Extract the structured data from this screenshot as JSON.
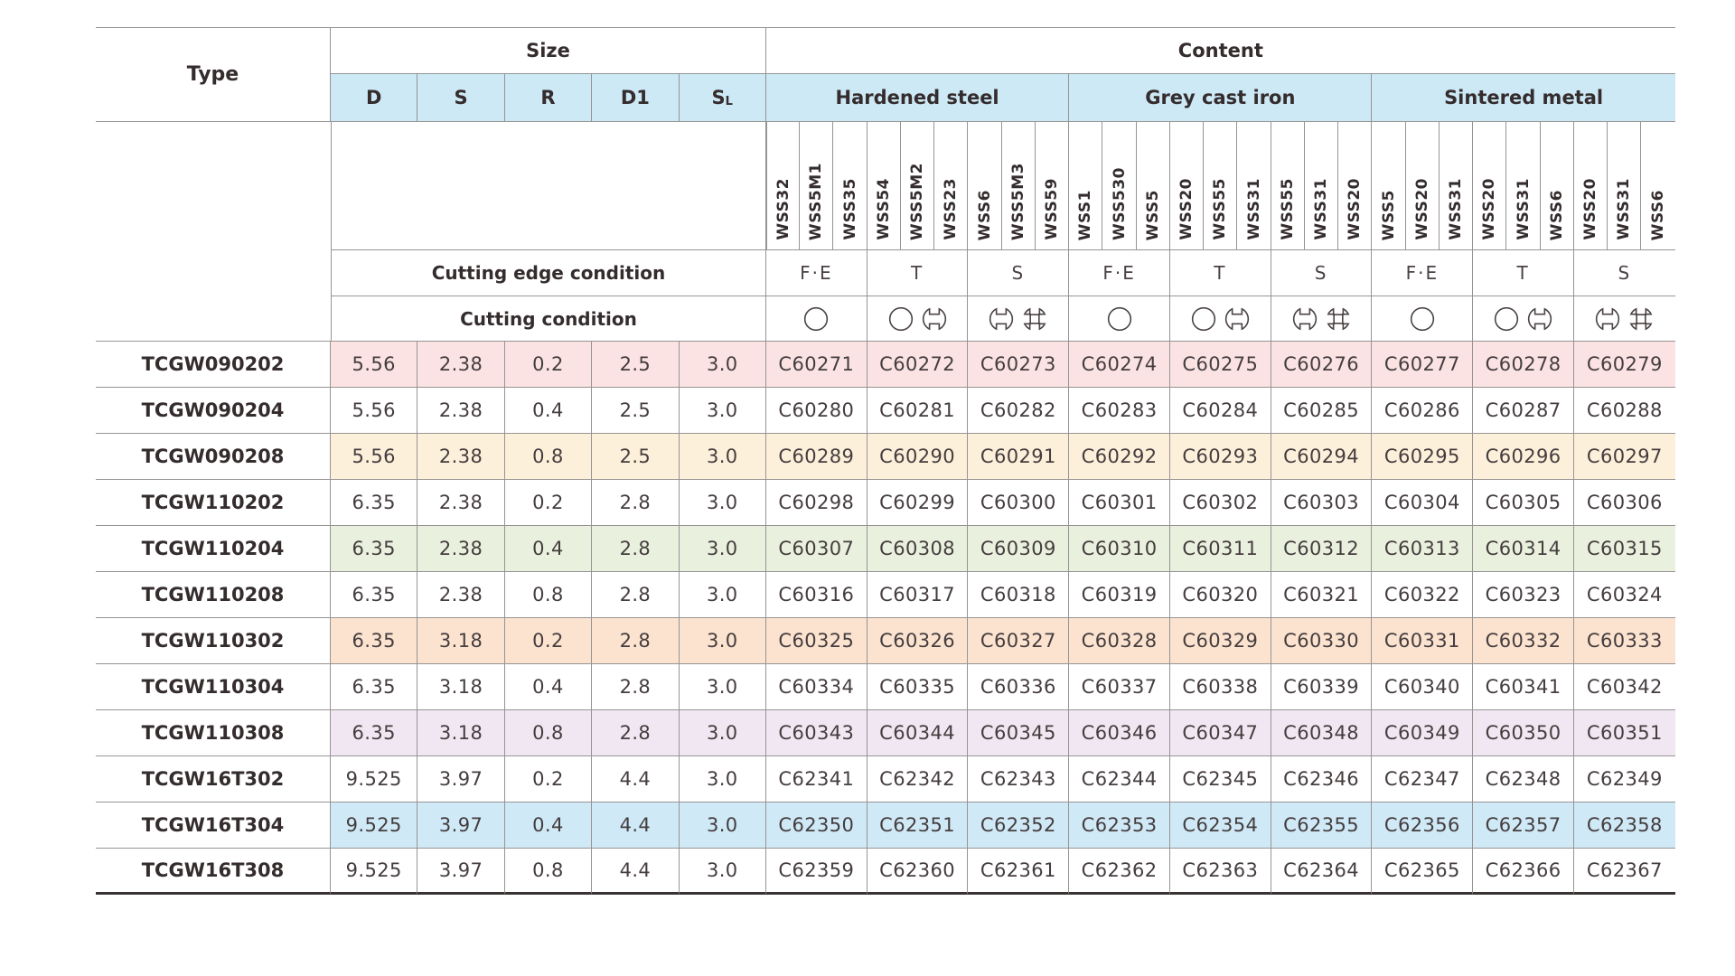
{
  "table": {
    "headers": {
      "type": "Type",
      "size": "Size",
      "content": "Content",
      "cutting_edge_condition": "Cutting edge condition",
      "cutting_condition": "Cutting condition"
    },
    "size_columns": [
      {
        "label": "D"
      },
      {
        "label": "S"
      },
      {
        "label": "R"
      },
      {
        "label": "D1"
      },
      {
        "label": "S",
        "sub": "L"
      }
    ],
    "material_groups": [
      {
        "label": "Hardened steel",
        "grades": [
          "WSS32",
          "WSS5M1",
          "WSS35",
          "WSS54",
          "WSS5M2",
          "WSS23",
          "WSS6",
          "WSS5M3",
          "WSS59"
        ]
      },
      {
        "label": "Grey cast iron",
        "grades": [
          "WSS1",
          "WSS530",
          "WSS5",
          "WSS20",
          "WSS55",
          "WSS31",
          "WSS55",
          "WSS31",
          "WSS20"
        ]
      },
      {
        "label": "Sintered metal",
        "grades": [
          "WSS5",
          "WSS20",
          "WSS31",
          "WSS20",
          "WSS31",
          "WSS6",
          "WSS20",
          "WSS31",
          "WSS6"
        ]
      }
    ],
    "edge_conditions": [
      "F·E",
      "T",
      "S"
    ],
    "cutting_condition_symbols": [
      [
        "continuous"
      ],
      [
        "continuous",
        "lightly-interrupted"
      ],
      [
        "lightly-interrupted",
        "heavily-interrupted"
      ]
    ],
    "colors": {
      "header_blue": "#cde9f6",
      "border_gray": "#979393",
      "bottom_rule": "#3a3233",
      "symbol_stroke": "#4c4445"
    },
    "rows": [
      {
        "type": "TCGW090202",
        "tint": "#fbe3e3",
        "size": [
          "5.56",
          "2.38",
          "0.2",
          "2.5",
          "3.0"
        ],
        "codes": [
          "C60271",
          "C60272",
          "C60273",
          "C60274",
          "C60275",
          "C60276",
          "C60277",
          "C60278",
          "C60279"
        ]
      },
      {
        "type": "TCGW090204",
        "tint": null,
        "size": [
          "5.56",
          "2.38",
          "0.4",
          "2.5",
          "3.0"
        ],
        "codes": [
          "C60280",
          "C60281",
          "C60282",
          "C60283",
          "C60284",
          "C60285",
          "C60286",
          "C60287",
          "C60288"
        ]
      },
      {
        "type": "TCGW090208",
        "tint": "#fdf0db",
        "size": [
          "5.56",
          "2.38",
          "0.8",
          "2.5",
          "3.0"
        ],
        "codes": [
          "C60289",
          "C60290",
          "C60291",
          "C60292",
          "C60293",
          "C60294",
          "C60295",
          "C60296",
          "C60297"
        ]
      },
      {
        "type": "TCGW110202",
        "tint": null,
        "size": [
          "6.35",
          "2.38",
          "0.2",
          "2.8",
          "3.0"
        ],
        "codes": [
          "C60298",
          "C60299",
          "C60300",
          "C60301",
          "C60302",
          "C60303",
          "C60304",
          "C60305",
          "C60306"
        ]
      },
      {
        "type": "TCGW110204",
        "tint": "#e9f1de",
        "size": [
          "6.35",
          "2.38",
          "0.4",
          "2.8",
          "3.0"
        ],
        "codes": [
          "C60307",
          "C60308",
          "C60309",
          "C60310",
          "C60311",
          "C60312",
          "C60313",
          "C60314",
          "C60315"
        ]
      },
      {
        "type": "TCGW110208",
        "tint": null,
        "size": [
          "6.35",
          "2.38",
          "0.8",
          "2.8",
          "3.0"
        ],
        "codes": [
          "C60316",
          "C60317",
          "C60318",
          "C60319",
          "C60320",
          "C60321",
          "C60322",
          "C60323",
          "C60324"
        ]
      },
      {
        "type": "TCGW110302",
        "tint": "#fbe3d0",
        "size": [
          "6.35",
          "3.18",
          "0.2",
          "2.8",
          "3.0"
        ],
        "codes": [
          "C60325",
          "C60326",
          "C60327",
          "C60328",
          "C60329",
          "C60330",
          "C60331",
          "C60332",
          "C60333"
        ]
      },
      {
        "type": "TCGW110304",
        "tint": null,
        "size": [
          "6.35",
          "3.18",
          "0.4",
          "2.8",
          "3.0"
        ],
        "codes": [
          "C60334",
          "C60335",
          "C60336",
          "C60337",
          "C60338",
          "C60339",
          "C60340",
          "C60341",
          "C60342"
        ]
      },
      {
        "type": "TCGW110308",
        "tint": "#f1e7f3",
        "size": [
          "6.35",
          "3.18",
          "0.8",
          "2.8",
          "3.0"
        ],
        "codes": [
          "C60343",
          "C60344",
          "C60345",
          "C60346",
          "C60347",
          "C60348",
          "C60349",
          "C60350",
          "C60351"
        ]
      },
      {
        "type": "TCGW16T302",
        "tint": null,
        "size": [
          "9.525",
          "3.97",
          "0.2",
          "4.4",
          "3.0"
        ],
        "codes": [
          "C62341",
          "C62342",
          "C62343",
          "C62344",
          "C62345",
          "C62346",
          "C62347",
          "C62348",
          "C62349"
        ]
      },
      {
        "type": "TCGW16T304",
        "tint": "#cfe9f7",
        "size": [
          "9.525",
          "3.97",
          "0.4",
          "4.4",
          "3.0"
        ],
        "codes": [
          "C62350",
          "C62351",
          "C62352",
          "C62353",
          "C62354",
          "C62355",
          "C62356",
          "C62357",
          "C62358"
        ]
      },
      {
        "type": "TCGW16T308",
        "tint": null,
        "size": [
          "9.525",
          "3.97",
          "0.8",
          "4.4",
          "3.0"
        ],
        "codes": [
          "C62359",
          "C62360",
          "C62361",
          "C62362",
          "C62363",
          "C62364",
          "C62365",
          "C62366",
          "C62367"
        ]
      }
    ]
  }
}
